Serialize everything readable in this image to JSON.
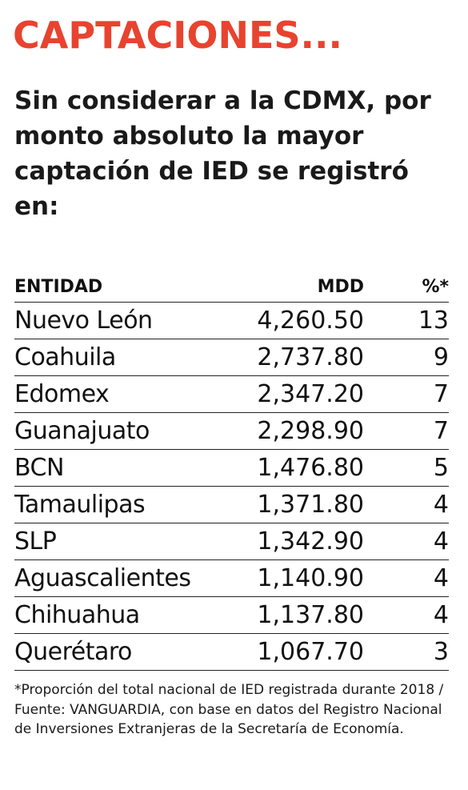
{
  "headline": "CAPTACIONES...",
  "subhead": "Sin considerar a la CDMX, por monto absoluto la mayor captación de IED se registró en:",
  "table": {
    "headers": {
      "entidad": "ENTIDAD",
      "mdd": "MDD",
      "pct": "%*"
    },
    "rows": [
      {
        "entidad": "Nuevo León",
        "mdd": "4,260.50",
        "pct": "13"
      },
      {
        "entidad": "Coahuila",
        "mdd": "2,737.80",
        "pct": "9"
      },
      {
        "entidad": "Edomex",
        "mdd": "2,347.20",
        "pct": "7"
      },
      {
        "entidad": "Guanajuato",
        "mdd": "2,298.90",
        "pct": "7"
      },
      {
        "entidad": "BCN",
        "mdd": "1,476.80",
        "pct": "5"
      },
      {
        "entidad": "Tamaulipas",
        "mdd": "1,371.80",
        "pct": "4"
      },
      {
        "entidad": "SLP",
        "mdd": "1,342.90",
        "pct": "4"
      },
      {
        "entidad": "Aguascalientes",
        "mdd": "1,140.90",
        "pct": "4"
      },
      {
        "entidad": "Chihuahua",
        "mdd": "1,137.80",
        "pct": "4"
      },
      {
        "entidad": "Querétaro",
        "mdd": "1,067.70",
        "pct": "3"
      }
    ]
  },
  "footnote": "*Proporción del total nacional de IED registrada durante 2018 / Fuente: VANGUARDIA, con base en datos del Registro Nacional de Inversiones Extranjeras de la Secretaría de Economía.",
  "colors": {
    "headline": "#e8432f",
    "text": "#111111"
  }
}
